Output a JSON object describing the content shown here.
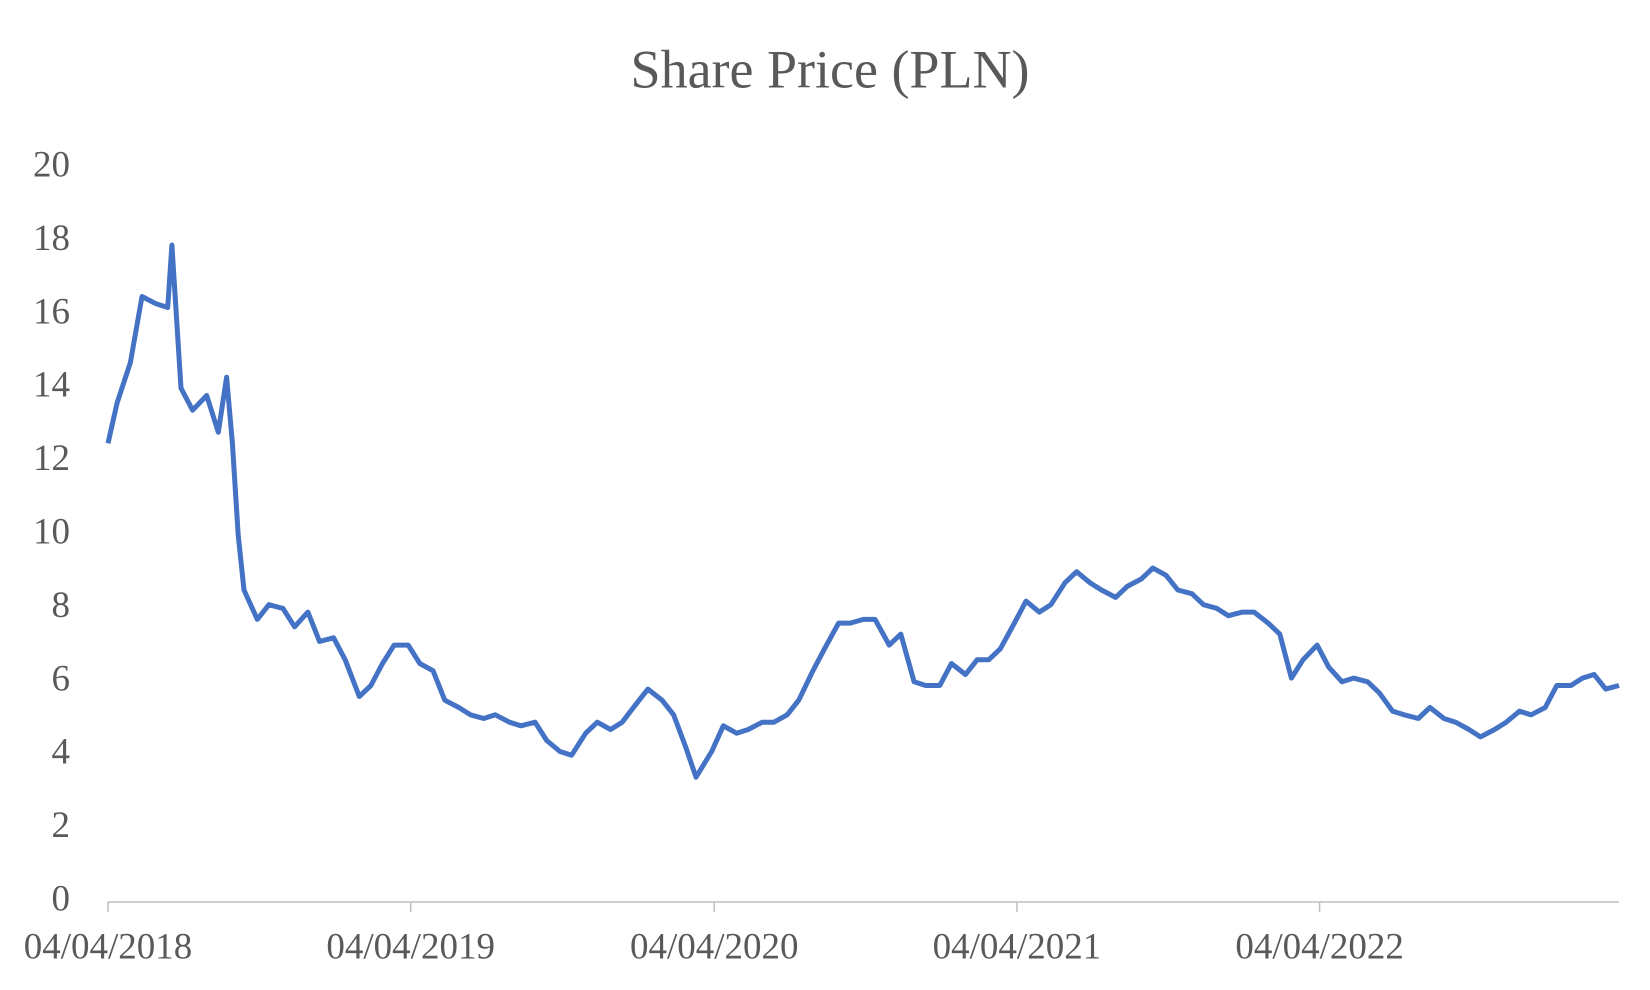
{
  "chart_data": {
    "type": "line",
    "title": "Share Price (PLN)",
    "x": [
      "2018-04-04",
      "2018-04-15",
      "2018-05-01",
      "2018-05-15",
      "2018-06-01",
      "2018-06-15",
      "2018-06-20",
      "2018-07-01",
      "2018-07-15",
      "2018-08-01",
      "2018-08-15",
      "2018-08-25",
      "2018-09-01",
      "2018-09-08",
      "2018-09-15",
      "2018-10-01",
      "2018-10-15",
      "2018-11-01",
      "2018-11-15",
      "2018-12-01",
      "2018-12-15",
      "2019-01-01",
      "2019-01-15",
      "2019-02-01",
      "2019-02-15",
      "2019-03-01",
      "2019-03-15",
      "2019-04-01",
      "2019-04-15",
      "2019-05-01",
      "2019-05-15",
      "2019-06-01",
      "2019-06-15",
      "2019-07-01",
      "2019-07-15",
      "2019-08-01",
      "2019-08-15",
      "2019-09-01",
      "2019-09-15",
      "2019-10-01",
      "2019-10-15",
      "2019-11-01",
      "2019-11-15",
      "2019-12-01",
      "2019-12-15",
      "2020-01-01",
      "2020-01-15",
      "2020-02-01",
      "2020-02-15",
      "2020-03-01",
      "2020-03-13",
      "2020-04-01",
      "2020-04-15",
      "2020-05-01",
      "2020-05-15",
      "2020-06-01",
      "2020-06-15",
      "2020-07-01",
      "2020-07-15",
      "2020-08-01",
      "2020-08-15",
      "2020-09-01",
      "2020-09-15",
      "2020-10-01",
      "2020-10-15",
      "2020-11-01",
      "2020-11-15",
      "2020-12-01",
      "2020-12-15",
      "2021-01-01",
      "2021-01-15",
      "2021-02-01",
      "2021-02-15",
      "2021-03-01",
      "2021-03-15",
      "2021-04-01",
      "2021-04-15",
      "2021-05-01",
      "2021-05-15",
      "2021-06-01",
      "2021-06-15",
      "2021-07-01",
      "2021-07-15",
      "2021-08-01",
      "2021-08-15",
      "2021-09-01",
      "2021-09-15",
      "2021-10-01",
      "2021-10-15",
      "2021-11-01",
      "2021-11-15",
      "2021-12-01",
      "2021-12-15",
      "2022-01-01",
      "2022-01-15",
      "2022-02-01",
      "2022-02-15",
      "2022-03-01",
      "2022-03-15",
      "2022-04-01",
      "2022-04-15",
      "2022-05-01",
      "2022-05-15",
      "2022-06-01",
      "2022-06-15",
      "2022-07-01",
      "2022-07-15",
      "2022-08-01",
      "2022-08-15",
      "2022-09-01",
      "2022-09-15",
      "2022-10-01",
      "2022-10-15",
      "2022-11-01",
      "2022-11-15",
      "2022-12-01",
      "2022-12-15",
      "2023-01-01",
      "2023-01-15",
      "2023-02-01",
      "2023-02-15",
      "2023-03-01",
      "2023-03-15",
      "2023-03-31"
    ],
    "series": [
      {
        "name": "Share Price",
        "color": "#4472c4",
        "values": [
          12.5,
          13.6,
          14.7,
          16.5,
          16.3,
          16.2,
          17.9,
          14,
          13.4,
          13.8,
          12.8,
          14.3,
          12.5,
          10,
          8.5,
          7.7,
          8.1,
          8,
          7.5,
          7.9,
          7.1,
          7.2,
          6.6,
          5.6,
          5.9,
          6.5,
          7,
          7,
          6.5,
          6.3,
          5.5,
          5.3,
          5.1,
          5,
          5.1,
          4.9,
          4.8,
          4.9,
          4.4,
          4.1,
          4,
          4.6,
          4.9,
          4.7,
          4.9,
          5.4,
          5.8,
          5.5,
          5.1,
          4.2,
          3.4,
          4.1,
          4.8,
          4.6,
          4.7,
          4.9,
          4.9,
          5.1,
          5.5,
          6.3,
          6.9,
          7.6,
          7.6,
          7.7,
          7.7,
          7,
          7.3,
          6,
          5.9,
          5.9,
          6.5,
          6.2,
          6.6,
          6.6,
          6.9,
          7.6,
          8.2,
          7.9,
          8.1,
          8.7,
          9,
          8.7,
          8.5,
          8.3,
          8.6,
          8.8,
          9.1,
          8.9,
          8.5,
          8.4,
          8.1,
          8,
          7.8,
          7.9,
          7.9,
          7.6,
          7.3,
          6.1,
          6.6,
          7,
          6.4,
          6,
          6.1,
          6,
          5.7,
          5.2,
          5.1,
          5,
          5.3,
          5,
          4.9,
          4.7,
          4.5,
          4.7,
          4.9,
          5.2,
          5.1,
          5.3,
          5.9,
          5.9,
          6.1,
          6.2,
          5.8,
          5.9
        ]
      }
    ],
    "xlim": [
      "2018-04-04",
      "2023-03-31"
    ],
    "xticks": [
      {
        "value": "2018-04-04",
        "label": "04/04/2018"
      },
      {
        "value": "2019-04-04",
        "label": "04/04/2019"
      },
      {
        "value": "2020-04-04",
        "label": "04/04/2020"
      },
      {
        "value": "2021-04-04",
        "label": "04/04/2021"
      },
      {
        "value": "2022-04-04",
        "label": "04/04/2022"
      }
    ],
    "ylim": [
      0,
      20
    ],
    "yticks": [
      0,
      2,
      4,
      6,
      8,
      10,
      12,
      14,
      16,
      18,
      20
    ],
    "grid": false
  }
}
